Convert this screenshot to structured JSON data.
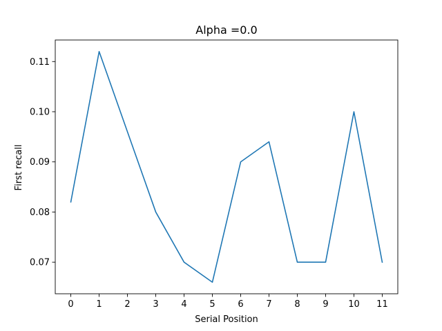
{
  "chart_data": {
    "type": "line",
    "title": "Alpha =0.0",
    "xlabel": "Serial Position",
    "ylabel": "First recall",
    "x": [
      0,
      1,
      2,
      3,
      4,
      5,
      6,
      7,
      8,
      9,
      10,
      11
    ],
    "series": [
      {
        "values": [
          0.082,
          0.112,
          0.096,
          0.08,
          0.07,
          0.066,
          0.09,
          0.094,
          0.07,
          0.07,
          0.1,
          0.07
        ],
        "color": "#1f77b4"
      }
    ],
    "xticks": [
      0,
      1,
      2,
      3,
      4,
      5,
      6,
      7,
      8,
      9,
      10,
      11
    ],
    "xtick_labels": [
      "0",
      "1",
      "2",
      "3",
      "4",
      "5",
      "6",
      "7",
      "8",
      "9",
      "10",
      "11"
    ],
    "yticks": [
      0.07,
      0.08,
      0.09,
      0.1,
      0.11
    ],
    "ytick_labels": [
      "0.07",
      "0.08",
      "0.09",
      "0.10",
      "0.11"
    ],
    "xlim": [
      -0.55,
      11.55
    ],
    "ylim": [
      0.0637,
      0.1143
    ],
    "grid": false,
    "legend": "none"
  }
}
